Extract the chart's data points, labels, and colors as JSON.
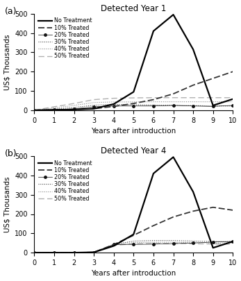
{
  "title_a": "Detected Year 1",
  "title_b": "Detected Year 4",
  "xlabel": "Years after introduction",
  "ylabel": "US$ Thousands",
  "label_a": "(a)",
  "label_b": "(b)",
  "xlim": [
    0,
    10
  ],
  "ylim": [
    0,
    500
  ],
  "xticks": [
    0,
    1,
    2,
    3,
    4,
    5,
    6,
    7,
    8,
    9,
    10
  ],
  "yticks": [
    0,
    100,
    200,
    300,
    400,
    500
  ],
  "series_a": {
    "no_treatment": [
      0,
      2,
      4,
      8,
      32,
      95,
      410,
      495,
      315,
      25,
      58
    ],
    "p10_treated": [
      0,
      2,
      4,
      8,
      20,
      35,
      55,
      85,
      130,
      165,
      200
    ],
    "p20_treated": [
      0,
      3,
      7,
      18,
      22,
      22,
      22,
      25,
      22,
      20,
      25
    ],
    "p30_treated": [
      0,
      6,
      14,
      26,
      30,
      28,
      27,
      26,
      24,
      22,
      22
    ],
    "p40_treated": [
      0,
      12,
      25,
      40,
      43,
      43,
      44,
      44,
      44,
      44,
      44
    ],
    "p50_treated": [
      0,
      18,
      35,
      55,
      62,
      64,
      65,
      65,
      65,
      65,
      65
    ]
  },
  "series_b": {
    "no_treatment": [
      0,
      0,
      0,
      2,
      35,
      95,
      410,
      495,
      315,
      25,
      58
    ],
    "p10_treated": [
      0,
      0,
      0,
      2,
      42,
      90,
      140,
      185,
      215,
      235,
      220
    ],
    "p20_treated": [
      0,
      0,
      0,
      2,
      42,
      43,
      44,
      47,
      50,
      55,
      58
    ],
    "p30_treated": [
      0,
      0,
      0,
      2,
      42,
      60,
      63,
      63,
      60,
      58,
      58
    ],
    "p40_treated": [
      0,
      0,
      0,
      2,
      40,
      52,
      54,
      54,
      52,
      50,
      50
    ],
    "p50_treated": [
      0,
      0,
      0,
      2,
      38,
      46,
      48,
      48,
      46,
      45,
      44
    ]
  },
  "legend_labels": [
    "No Treatment",
    "10% Treated",
    "20% Treated",
    "30% Treated",
    "40% Treated",
    "50% Treated"
  ],
  "background": "#ffffff"
}
